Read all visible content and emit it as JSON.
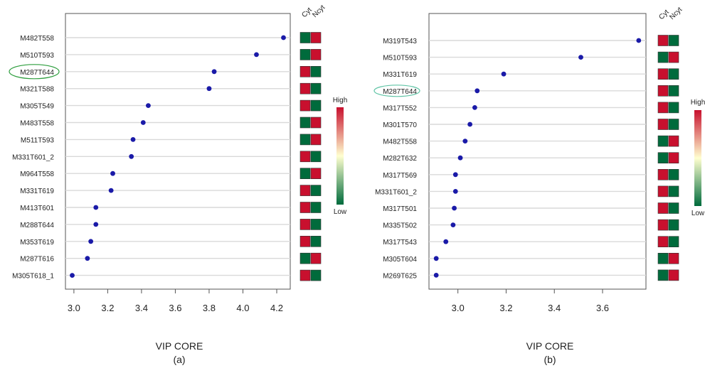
{
  "colors": {
    "red": "#c8102e",
    "green": "#006b3c",
    "dot": "#1a1aa8",
    "grid": "#d9d9d9",
    "ellipse": "#2e9e3e",
    "ellipse_b": "#5fc4a5"
  },
  "chart_data": [
    {
      "type": "scatter",
      "xlabel": "VIP CORE",
      "caption": "(a)",
      "xlim": [
        2.95,
        4.28
      ],
      "xticks": [
        "3.0",
        "3.2",
        "3.4",
        "3.6",
        "3.8",
        "4.0",
        "4.2"
      ],
      "heatmap_columns": [
        "Cyt",
        "Ncyt"
      ],
      "legend": {
        "high": "High",
        "low": "Low"
      },
      "highlighted": "M287T644",
      "categories": [
        "M482T558",
        "M510T593",
        "M287T644",
        "M321T588",
        "M305T549",
        "M483T558",
        "M511T593",
        "M331T601_2",
        "M964T558",
        "M331T619",
        "M413T601",
        "M288T644",
        "M353T619",
        "M287T616",
        "M305T618_1"
      ],
      "values": [
        4.24,
        4.08,
        3.83,
        3.8,
        3.44,
        3.41,
        3.35,
        3.34,
        3.23,
        3.22,
        3.13,
        3.13,
        3.1,
        3.08,
        2.99
      ],
      "heatmap": [
        [
          "green",
          "red"
        ],
        [
          "green",
          "red"
        ],
        [
          "red",
          "green"
        ],
        [
          "red",
          "green"
        ],
        [
          "red",
          "green"
        ],
        [
          "green",
          "red"
        ],
        [
          "green",
          "red"
        ],
        [
          "red",
          "green"
        ],
        [
          "green",
          "red"
        ],
        [
          "red",
          "green"
        ],
        [
          "red",
          "green"
        ],
        [
          "red",
          "green"
        ],
        [
          "red",
          "green"
        ],
        [
          "green",
          "red"
        ],
        [
          "red",
          "green"
        ]
      ]
    },
    {
      "type": "scatter",
      "xlabel": "VIP CORE",
      "caption": "(b)",
      "xlim": [
        2.88,
        3.78
      ],
      "xticks": [
        "3.0",
        "3.2",
        "3.4",
        "3.6"
      ],
      "heatmap_columns": [
        "Cyt",
        "Ncyt"
      ],
      "legend": {
        "high": "High",
        "low": "Low"
      },
      "highlighted": "M287T644",
      "categories": [
        "M319T543",
        "M510T593",
        "M331T619",
        "M287T644",
        "M317T552",
        "M301T570",
        "M482T558",
        "M282T632",
        "M317T569",
        "M331T601_2",
        "M317T501",
        "M335T502",
        "M317T543",
        "M305T604",
        "M269T625"
      ],
      "values": [
        3.75,
        3.51,
        3.19,
        3.08,
        3.07,
        3.05,
        3.03,
        3.01,
        2.99,
        2.99,
        2.985,
        2.98,
        2.95,
        2.91,
        2.91
      ],
      "heatmap": [
        [
          "red",
          "green"
        ],
        [
          "green",
          "red"
        ],
        [
          "red",
          "green"
        ],
        [
          "red",
          "green"
        ],
        [
          "red",
          "green"
        ],
        [
          "red",
          "green"
        ],
        [
          "green",
          "red"
        ],
        [
          "green",
          "red"
        ],
        [
          "red",
          "green"
        ],
        [
          "red",
          "green"
        ],
        [
          "red",
          "green"
        ],
        [
          "red",
          "green"
        ],
        [
          "red",
          "green"
        ],
        [
          "green",
          "red"
        ],
        [
          "green",
          "red"
        ]
      ]
    }
  ]
}
